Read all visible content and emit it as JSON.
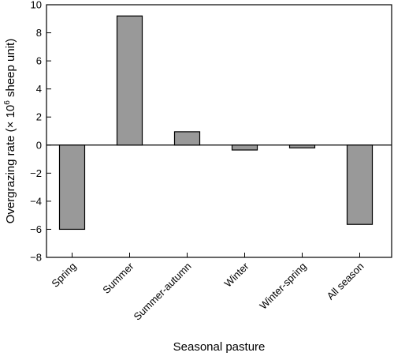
{
  "chart_data": {
    "type": "bar",
    "categories": [
      "Spring",
      "Summer",
      "Summer-autumn",
      "Winter",
      "Winter-spring",
      "All season"
    ],
    "values": [
      -6.0,
      9.2,
      0.95,
      -0.35,
      -0.2,
      -5.65
    ],
    "xlabel": "Seasonal pasture",
    "ylabel_prefix": "Overgrazing rate (× 10",
    "ylabel_exponent": "6",
    "ylabel_suffix": " sheep unit)",
    "ylim": [
      -8,
      10
    ],
    "yticks": [
      "−8",
      "−6",
      "−4",
      "−2",
      "0",
      "2",
      "4",
      "6",
      "8",
      "10"
    ],
    "ytick_values": [
      -8,
      -6,
      -4,
      -2,
      0,
      2,
      4,
      6,
      8,
      10
    ],
    "grid": false,
    "zero_line": true,
    "colors": {
      "bar_fill": "#999999",
      "bar_stroke": "#000000",
      "axis": "#000000"
    }
  }
}
